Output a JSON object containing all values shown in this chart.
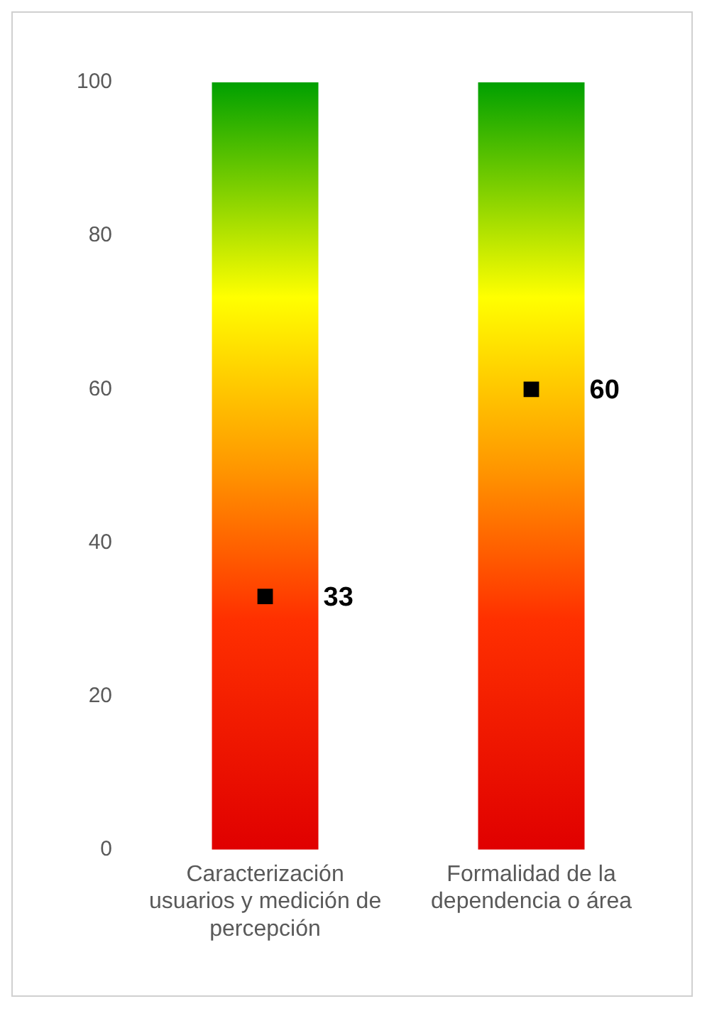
{
  "chart_data": {
    "type": "bar",
    "categories": [
      "Caracterización usuarios y medición de percepción",
      "Formalidad de la dependencia o área"
    ],
    "series": [
      {
        "color": "#ffff00",
        "values": [
          100,
          100
        ]
      },
      {
        "type": "scatter",
        "color": "#000000",
        "values": [
          33,
          60
        ],
        "marker": "square",
        "value_labels": [
          "33",
          "60"
        ]
      }
    ],
    "ylim": [
      0,
      100
    ],
    "yticks": [
      0,
      20,
      40,
      60,
      80,
      100
    ],
    "grid": false,
    "legend": false
  }
}
